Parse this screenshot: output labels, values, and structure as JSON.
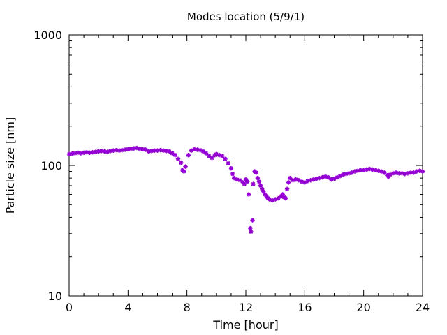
{
  "chart_data": {
    "type": "scatter",
    "title": "Modes location (5/9/1)",
    "xlabel": "Time [hour]",
    "ylabel": "Particle size [nm]",
    "xlim": [
      0,
      24
    ],
    "ylim": [
      10,
      1000
    ],
    "yscale": "log",
    "xticks": [
      0,
      4,
      8,
      12,
      16,
      20,
      24
    ],
    "xtick_labels": [
      "0",
      "4",
      "8",
      "12",
      "16",
      "20",
      "24"
    ],
    "yticks": [
      10,
      100,
      1000
    ],
    "ytick_labels": [
      "10",
      "100",
      "1000"
    ],
    "grid": false,
    "marker": "*",
    "color": "#9400d3",
    "series": [
      {
        "points": [
          [
            0.0,
            122
          ],
          [
            0.2,
            123
          ],
          [
            0.4,
            124
          ],
          [
            0.6,
            125
          ],
          [
            0.8,
            124
          ],
          [
            1.0,
            125
          ],
          [
            1.2,
            126
          ],
          [
            1.4,
            125
          ],
          [
            1.6,
            126
          ],
          [
            1.8,
            127
          ],
          [
            2.0,
            128
          ],
          [
            2.2,
            129
          ],
          [
            2.4,
            128
          ],
          [
            2.6,
            127
          ],
          [
            2.8,
            129
          ],
          [
            3.0,
            130
          ],
          [
            3.2,
            131
          ],
          [
            3.4,
            130
          ],
          [
            3.6,
            131
          ],
          [
            3.8,
            132
          ],
          [
            4.0,
            133
          ],
          [
            4.2,
            134
          ],
          [
            4.4,
            135
          ],
          [
            4.6,
            136
          ],
          [
            4.8,
            134
          ],
          [
            5.0,
            133
          ],
          [
            5.2,
            132
          ],
          [
            5.4,
            128
          ],
          [
            5.6,
            129
          ],
          [
            5.8,
            130
          ],
          [
            6.0,
            130
          ],
          [
            6.2,
            131
          ],
          [
            6.4,
            130
          ],
          [
            6.6,
            129
          ],
          [
            6.8,
            128
          ],
          [
            7.0,
            124
          ],
          [
            7.2,
            120
          ],
          [
            7.4,
            112
          ],
          [
            7.6,
            105
          ],
          [
            7.7,
            92
          ],
          [
            7.8,
            90
          ],
          [
            7.9,
            98
          ],
          [
            8.1,
            120
          ],
          [
            8.3,
            130
          ],
          [
            8.5,
            133
          ],
          [
            8.7,
            132
          ],
          [
            8.9,
            131
          ],
          [
            9.1,
            128
          ],
          [
            9.3,
            124
          ],
          [
            9.5,
            118
          ],
          [
            9.7,
            114
          ],
          [
            9.9,
            120
          ],
          [
            10.0,
            122
          ],
          [
            10.2,
            120
          ],
          [
            10.4,
            118
          ],
          [
            10.6,
            112
          ],
          [
            10.8,
            104
          ],
          [
            11.0,
            95
          ],
          [
            11.1,
            86
          ],
          [
            11.2,
            80
          ],
          [
            11.4,
            78
          ],
          [
            11.6,
            77
          ],
          [
            11.8,
            74
          ],
          [
            11.9,
            72
          ],
          [
            12.0,
            78
          ],
          [
            12.1,
            75
          ],
          [
            12.2,
            60
          ],
          [
            12.3,
            33
          ],
          [
            12.35,
            31
          ],
          [
            12.45,
            38
          ],
          [
            12.5,
            72
          ],
          [
            12.6,
            90
          ],
          [
            12.7,
            88
          ],
          [
            12.8,
            80
          ],
          [
            12.9,
            75
          ],
          [
            13.0,
            70
          ],
          [
            13.1,
            66
          ],
          [
            13.2,
            63
          ],
          [
            13.3,
            60
          ],
          [
            13.4,
            58
          ],
          [
            13.5,
            56
          ],
          [
            13.6,
            55
          ],
          [
            13.8,
            54
          ],
          [
            14.0,
            55
          ],
          [
            14.2,
            56
          ],
          [
            14.4,
            58
          ],
          [
            14.5,
            60
          ],
          [
            14.6,
            57
          ],
          [
            14.7,
            56
          ],
          [
            14.8,
            66
          ],
          [
            14.9,
            74
          ],
          [
            15.0,
            80
          ],
          [
            15.2,
            77
          ],
          [
            15.4,
            78
          ],
          [
            15.6,
            77
          ],
          [
            15.8,
            75
          ],
          [
            16.0,
            74
          ],
          [
            16.2,
            76
          ],
          [
            16.4,
            77
          ],
          [
            16.6,
            78
          ],
          [
            16.8,
            79
          ],
          [
            17.0,
            80
          ],
          [
            17.2,
            81
          ],
          [
            17.4,
            82
          ],
          [
            17.6,
            81
          ],
          [
            17.8,
            78
          ],
          [
            18.0,
            79
          ],
          [
            18.2,
            81
          ],
          [
            18.4,
            83
          ],
          [
            18.6,
            85
          ],
          [
            18.8,
            86
          ],
          [
            19.0,
            87
          ],
          [
            19.2,
            88
          ],
          [
            19.4,
            90
          ],
          [
            19.6,
            91
          ],
          [
            19.8,
            92
          ],
          [
            20.0,
            92
          ],
          [
            20.2,
            93
          ],
          [
            20.4,
            94
          ],
          [
            20.6,
            93
          ],
          [
            20.8,
            92
          ],
          [
            21.0,
            91
          ],
          [
            21.2,
            90
          ],
          [
            21.4,
            88
          ],
          [
            21.6,
            84
          ],
          [
            21.7,
            82
          ],
          [
            21.8,
            85
          ],
          [
            22.0,
            87
          ],
          [
            22.2,
            88
          ],
          [
            22.4,
            87
          ],
          [
            22.6,
            87
          ],
          [
            22.8,
            86
          ],
          [
            23.0,
            87
          ],
          [
            23.2,
            88
          ],
          [
            23.4,
            88
          ],
          [
            23.6,
            90
          ],
          [
            23.8,
            91
          ],
          [
            24.0,
            90
          ]
        ]
      }
    ]
  }
}
